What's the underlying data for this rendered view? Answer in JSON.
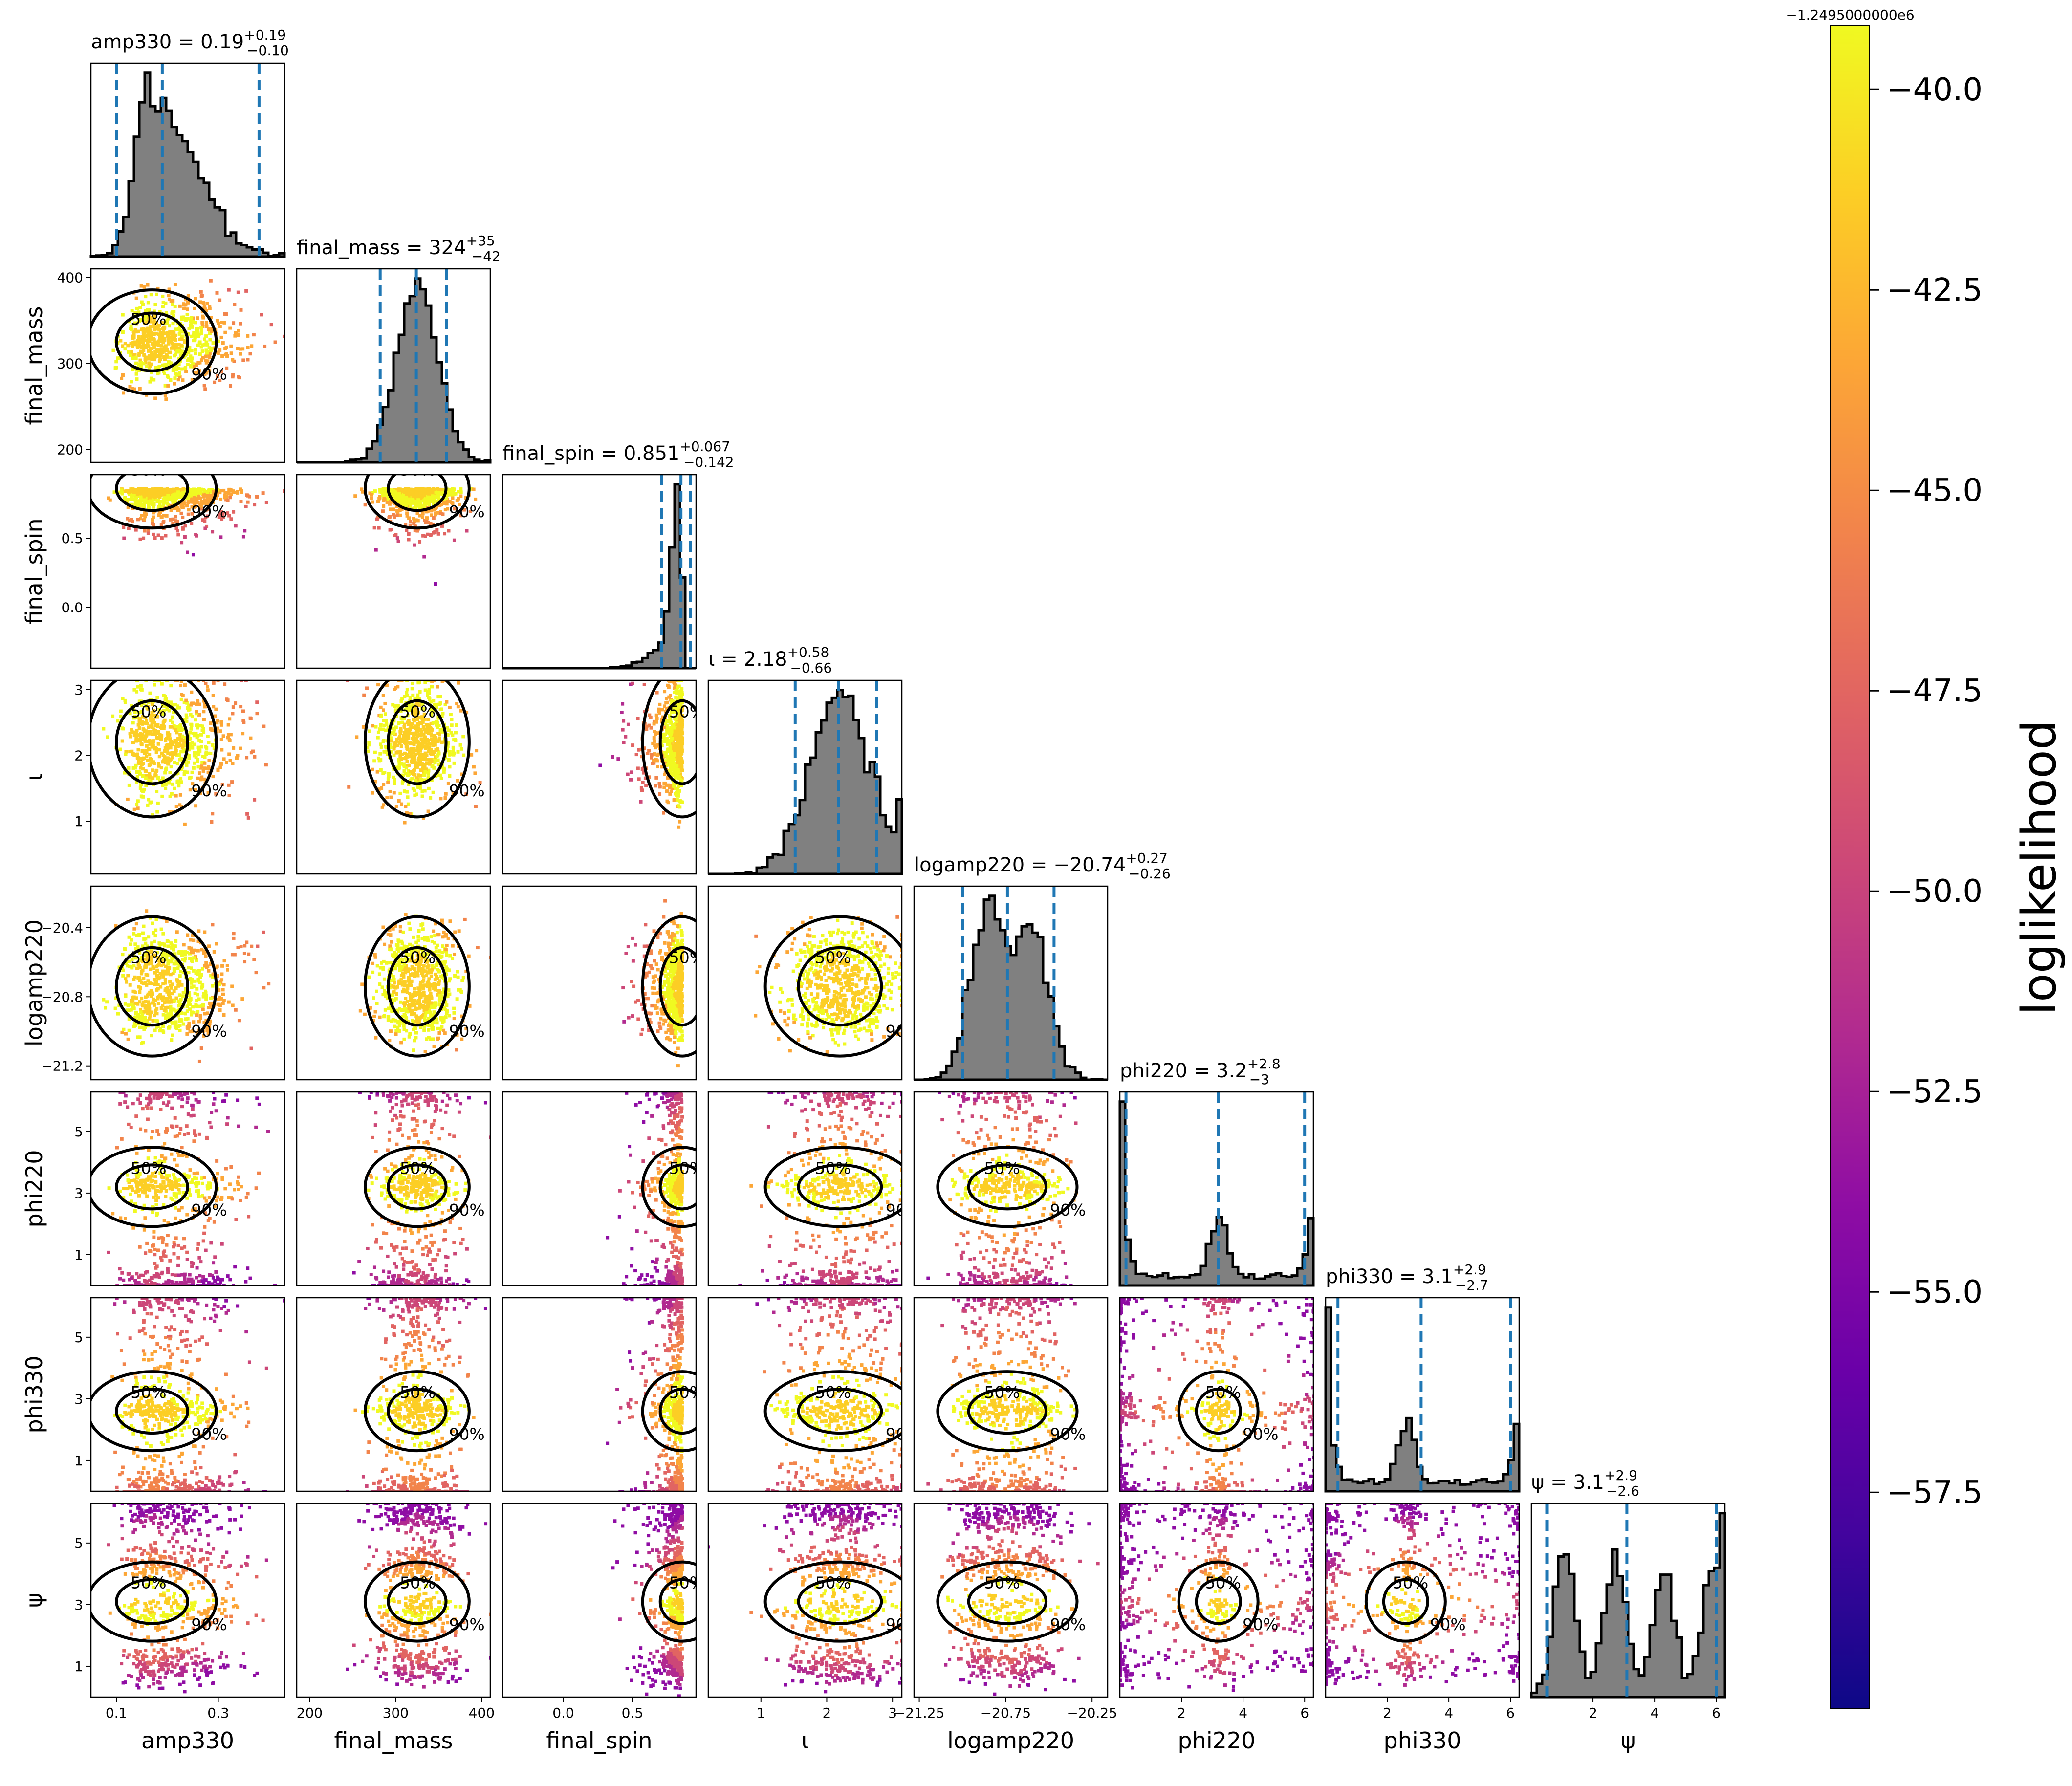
{
  "chart_data": {
    "type": "corner",
    "colorbar": {
      "label": "loglikelihood",
      "offset_text": "−1.2495000000e6",
      "ticks": [
        "−40.0",
        "−42.5",
        "−45.0",
        "−47.5",
        "−50.0",
        "−52.5",
        "−55.0",
        "−57.5"
      ],
      "tick_values": [
        -40.0,
        -42.5,
        -45.0,
        -47.5,
        -50.0,
        -52.5,
        -55.0,
        -57.5
      ],
      "range": [
        -60.2,
        -39.2
      ],
      "colormap": "plasma"
    },
    "marker_color": "#1f77b4",
    "histogram_color": "#808080",
    "contour_levels": [
      "50%",
      "90%"
    ],
    "parameters": [
      {
        "key": "amp330",
        "label": "amp330",
        "title_name": "amp330",
        "median": "0.19",
        "plus": "+0.19",
        "minus": "−0.10",
        "range": [
          0.05,
          0.43
        ],
        "markers": [
          0.1,
          0.19,
          0.38
        ],
        "ticks": [
          "0.1",
          "0.3"
        ],
        "tick_values": [
          0.1,
          0.3
        ],
        "tick_pos": [
          0.1,
          0.3
        ],
        "mode": "skewed",
        "loc": 0.17,
        "scale": 0.05
      },
      {
        "key": "final_mass",
        "label": "final_mass",
        "title_name": "final_mass",
        "median": "324",
        "plus": "+35",
        "minus": "−42",
        "range": [
          185,
          410
        ],
        "markers": [
          282,
          324,
          359
        ],
        "ticks": [
          "200",
          "300",
          "400"
        ],
        "tick_values": [
          200,
          300,
          400
        ],
        "tick_pos": [
          200,
          300,
          400
        ],
        "mode": "normal",
        "loc": 325,
        "scale": 24
      },
      {
        "key": "final_spin",
        "label": "final_spin",
        "title_name": "final_spin",
        "median": "0.851",
        "plus": "+0.067",
        "minus": "−0.142",
        "range": [
          -0.44,
          0.96
        ],
        "markers": [
          0.709,
          0.851,
          0.918
        ],
        "ticks": [
          "0.0",
          "0.5"
        ],
        "tick_values": [
          0.0,
          0.5
        ],
        "tick_pos": [
          0.0,
          0.5
        ],
        "mode": "left",
        "loc": 0.86,
        "scale": 0.06
      },
      {
        "key": "iota",
        "label": "ι",
        "title_name": "ι",
        "median": "2.18",
        "plus": "+0.58",
        "minus": "−0.66",
        "range": [
          0.2,
          3.14
        ],
        "markers": [
          1.52,
          2.18,
          2.76
        ],
        "ticks": [
          "1",
          "2",
          "3"
        ],
        "tick_values": [
          1,
          2,
          3
        ],
        "tick_pos": [
          1,
          2,
          3
        ],
        "mode": "flat",
        "loc": 2.2,
        "scale": 0.45
      },
      {
        "key": "logamp220",
        "label": "logamp220",
        "title_name": "logamp220",
        "median": "−20.74",
        "plus": "+0.27",
        "minus": "−0.26",
        "range": [
          -21.28,
          -20.16
        ],
        "markers": [
          -21.0,
          -20.74,
          -20.47
        ],
        "ticks": [
          "−21.25",
          "−20.75",
          "−20.25"
        ],
        "tick_values": [
          -21.25,
          -20.75,
          -20.25
        ],
        "tick_pos": [
          -21.25,
          -20.75,
          -20.25
        ],
        "yticks": [
          "−21.2",
          "−20.8",
          "−20.4"
        ],
        "ytick_values": [
          -21.2,
          -20.8,
          -20.4
        ],
        "mode": "bimodal",
        "loc": -20.74,
        "scale": 0.16
      },
      {
        "key": "phi220",
        "label": "phi220",
        "title_name": "phi220",
        "median": "3.2",
        "plus": "+2.8",
        "minus": "−3",
        "range": [
          0,
          6.283
        ],
        "markers": [
          0.2,
          3.2,
          6.0
        ],
        "ticks": [
          "2",
          "4",
          "6"
        ],
        "tick_values": [
          2,
          4,
          6
        ],
        "tick_pos": [
          2,
          4,
          6
        ],
        "yticks": [
          "1",
          "3",
          "5"
        ],
        "ytick_values": [
          1,
          3,
          5
        ],
        "mode": "periodic",
        "loc": 3.2,
        "scale": 0.4
      },
      {
        "key": "phi330",
        "label": "phi330",
        "title_name": "phi330",
        "median": "3.1",
        "plus": "+2.9",
        "minus": "−2.7",
        "range": [
          0,
          6.283
        ],
        "markers": [
          0.4,
          3.1,
          6.0
        ],
        "ticks": [
          "2",
          "4",
          "6"
        ],
        "tick_values": [
          2,
          4,
          6
        ],
        "tick_pos": [
          2,
          4,
          6
        ],
        "yticks": [
          "1",
          "3",
          "5"
        ],
        "ytick_values": [
          1,
          3,
          5
        ],
        "mode": "periodic",
        "loc": 2.6,
        "scale": 0.5
      },
      {
        "key": "psi",
        "label": "ψ",
        "title_name": "ψ",
        "median": "3.1",
        "plus": "+2.9",
        "minus": "−2.6",
        "range": [
          0,
          6.283
        ],
        "markers": [
          0.5,
          3.1,
          6.0
        ],
        "ticks": [
          "2",
          "4",
          "6"
        ],
        "tick_values": [
          2,
          4,
          6
        ],
        "tick_pos": [
          2,
          4,
          6
        ],
        "yticks": [
          "1",
          "3",
          "5"
        ],
        "ytick_values": [
          1,
          3,
          5
        ],
        "mode": "multimodal",
        "loc": 3.1,
        "scale": 0.3
      }
    ]
  }
}
